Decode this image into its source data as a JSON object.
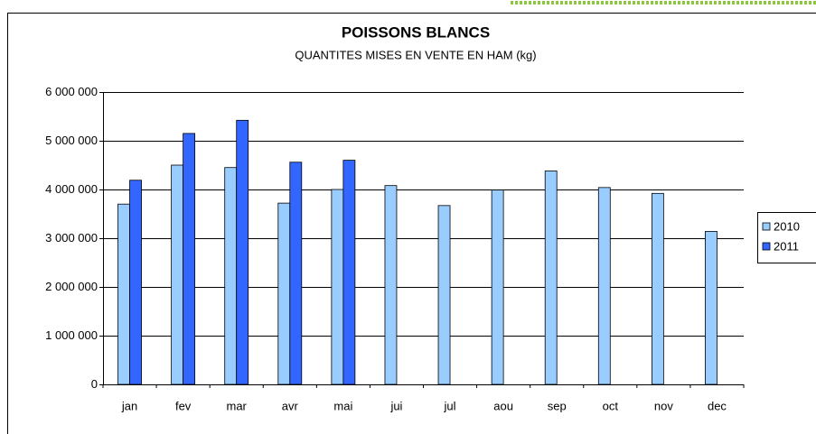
{
  "chart_data": {
    "type": "bar",
    "title": "POISSONS BLANCS",
    "subtitle": "QUANTITES MISES EN VENTE EN HAM (kg)",
    "categories": [
      "jan",
      "fev",
      "mar",
      "avr",
      "mai",
      "jui",
      "jul",
      "aou",
      "sep",
      "oct",
      "nov",
      "dec"
    ],
    "series": [
      {
        "name": "2010",
        "color": "#99ccff",
        "values": [
          3700000,
          4500000,
          4450000,
          3720000,
          4000000,
          4080000,
          3670000,
          3990000,
          4380000,
          4040000,
          3920000,
          3140000
        ]
      },
      {
        "name": "2011",
        "color": "#3366ff",
        "values": [
          4190000,
          5150000,
          5420000,
          4560000,
          4600000,
          null,
          null,
          null,
          null,
          null,
          null,
          null
        ]
      }
    ],
    "ylim": [
      0,
      6000000
    ],
    "yticks": [
      0,
      {
        "value": 1000000,
        "label": "1 000 000"
      },
      {
        "value": 2000000,
        "label": "2 000 000"
      },
      {
        "value": 3000000,
        "label": "3 000 000"
      },
      {
        "value": 4000000,
        "label": "4 000 000"
      },
      {
        "value": 5000000,
        "label": "5 000 000"
      },
      {
        "value": 6000000,
        "label": "6 000 000"
      }
    ],
    "grid": true,
    "legend": "right"
  }
}
